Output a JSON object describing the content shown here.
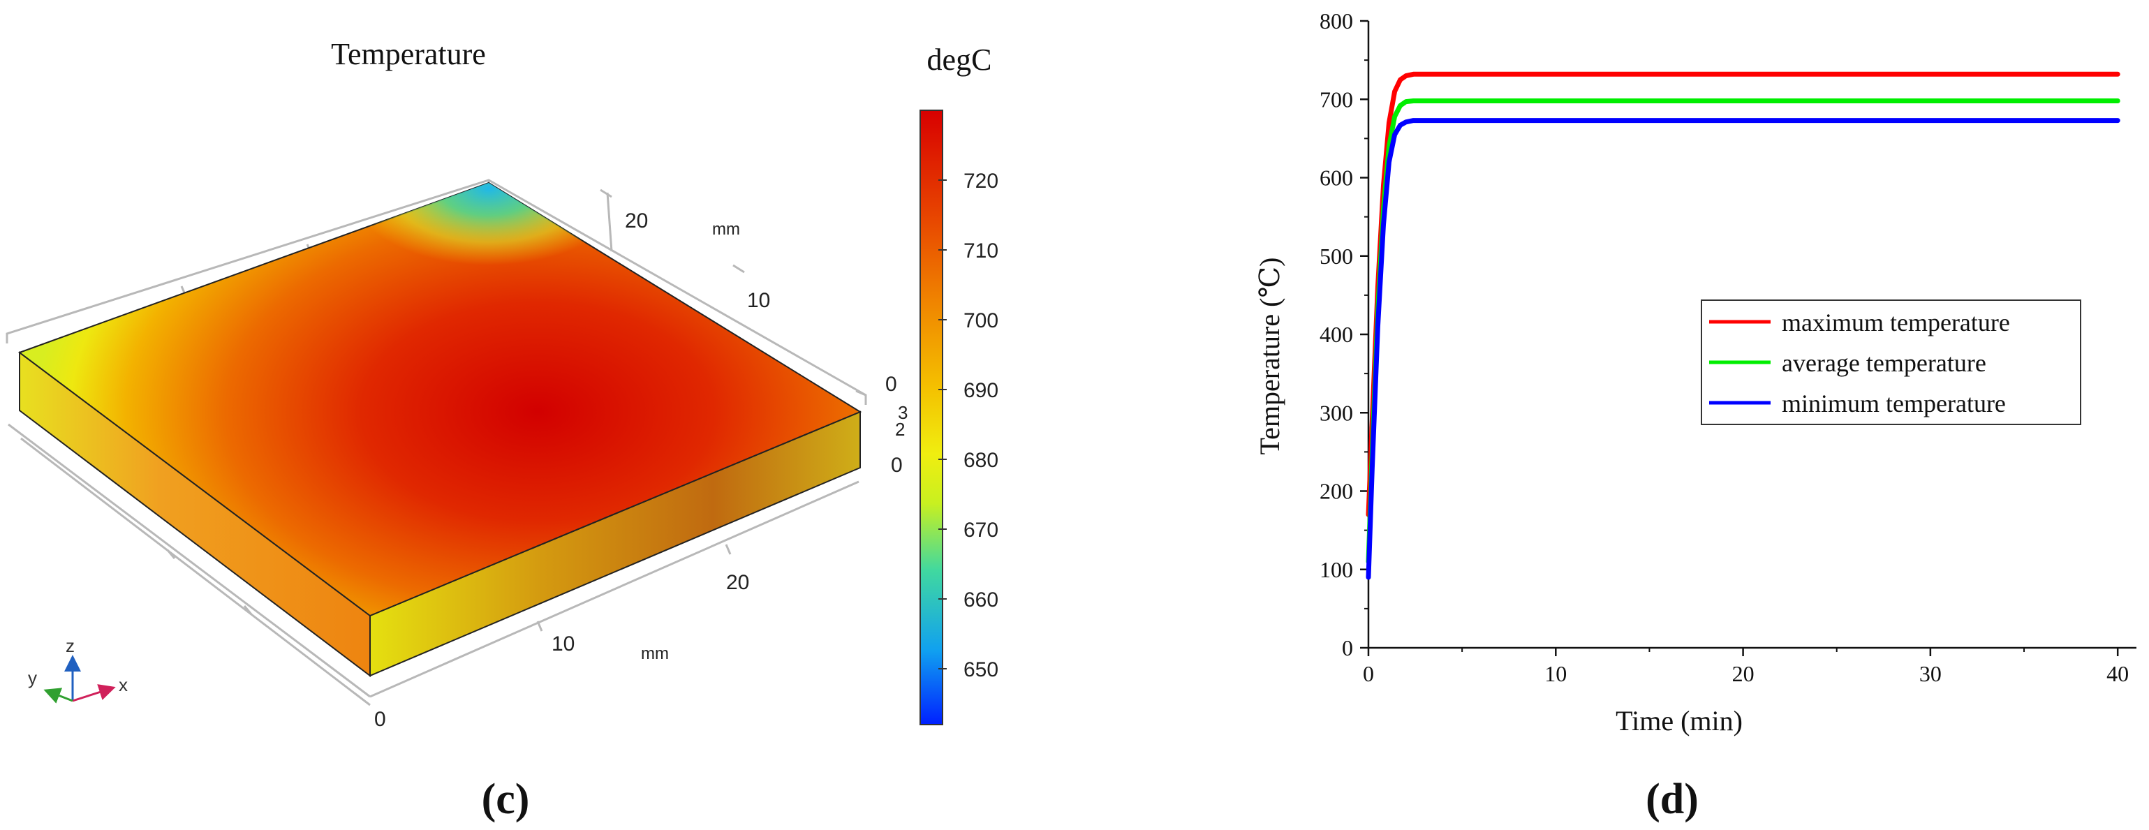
{
  "panel_c": {
    "title": "Temperature",
    "unit_label": "degC",
    "caption": "(c)",
    "colorbar": {
      "min": 642,
      "max": 730,
      "ticks": [
        720,
        710,
        700,
        690,
        680,
        670,
        660,
        650
      ],
      "tick_labels": [
        "720",
        "710",
        "700",
        "690",
        "680",
        "670",
        "660",
        "650"
      ]
    },
    "axes": {
      "y_axis_labels": [
        "20",
        "10",
        "0"
      ],
      "y_axis_unit": "mm",
      "x_axis_labels": [
        "20",
        "10",
        "0"
      ],
      "x_axis_unit": "mm",
      "z_axis_labels": [
        "3",
        "2",
        "0"
      ],
      "triad": {
        "x": "x",
        "y": "y",
        "z": "z"
      }
    },
    "colors": {
      "hot": "#d40000",
      "warm": "#f07a00",
      "mid": "#f5b800",
      "yellow": "#eeee10",
      "cool": "#30d0c0",
      "cold": "#1030ff"
    }
  },
  "chart_data": [
    {
      "type": "line",
      "title": "",
      "caption": "(d)",
      "xlabel": "Time (min)",
      "ylabel": "Temperature (℃)",
      "xlim": [
        0,
        41
      ],
      "ylim": [
        0,
        800
      ],
      "xticks": [
        0,
        10,
        20,
        30,
        40
      ],
      "xtick_labels": [
        "0",
        "10",
        "20",
        "30",
        "40"
      ],
      "yticks": [
        0,
        100,
        200,
        300,
        400,
        500,
        600,
        700,
        800
      ],
      "ytick_labels": [
        "0",
        "100",
        "200",
        "300",
        "400",
        "500",
        "600",
        "700",
        "800"
      ],
      "grid": false,
      "legend_position": "right-middle",
      "series": [
        {
          "name": "maximum temperature",
          "color": "#ff0000",
          "x": [
            0,
            0.2,
            0.5,
            0.8,
            1.1,
            1.4,
            1.7,
            2.0,
            2.4,
            3.0,
            4,
            10,
            20,
            30,
            40
          ],
          "y": [
            170,
            290,
            460,
            590,
            670,
            710,
            725,
            730,
            732,
            732,
            732,
            732,
            732,
            732,
            732
          ]
        },
        {
          "name": "average temperature",
          "color": "#00ee00",
          "x": [
            0,
            0.2,
            0.5,
            0.8,
            1.1,
            1.4,
            1.7,
            2.0,
            2.4,
            3.0,
            4,
            10,
            20,
            30,
            40
          ],
          "y": [
            110,
            250,
            430,
            560,
            640,
            678,
            692,
            697,
            698,
            698,
            698,
            698,
            698,
            698,
            698
          ]
        },
        {
          "name": "minimum temperature",
          "color": "#0000ff",
          "x": [
            0,
            0.2,
            0.5,
            0.8,
            1.1,
            1.4,
            1.7,
            2.0,
            2.4,
            3.0,
            4,
            10,
            20,
            30,
            40
          ],
          "y": [
            90,
            230,
            410,
            540,
            620,
            655,
            667,
            671,
            673,
            673,
            673,
            673,
            673,
            673,
            673
          ]
        }
      ]
    }
  ]
}
